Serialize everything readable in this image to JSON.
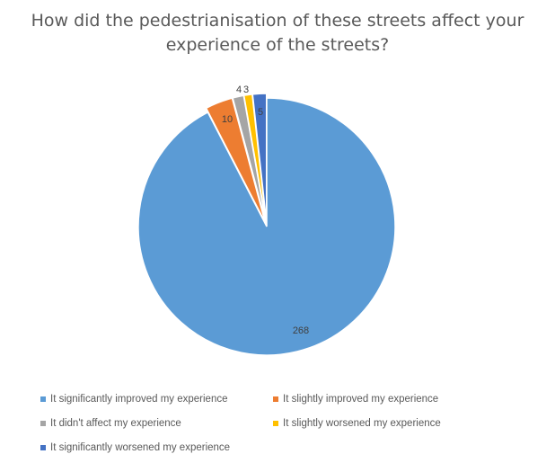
{
  "chart_data": {
    "type": "pie",
    "title_lines": [
      "How did the pedestrianisation of these streets affect your",
      "experience of the streets?"
    ],
    "categories": [
      "It significantly improved my experience",
      "It slightly improved my experience",
      "It didn't affect my experience",
      "It slightly worsened my experience",
      "It significantly worsened my experience"
    ],
    "values": [
      268,
      10,
      4,
      3,
      5
    ],
    "data_labels": [
      "268",
      "10",
      "4",
      "3",
      "5"
    ],
    "colors": [
      "#5B9BD5",
      "#ED7D31",
      "#A5A5A5",
      "#FFC000",
      "#4472C4"
    ],
    "legend_position": "bottom",
    "start": "12 o'clock, clockwise"
  }
}
